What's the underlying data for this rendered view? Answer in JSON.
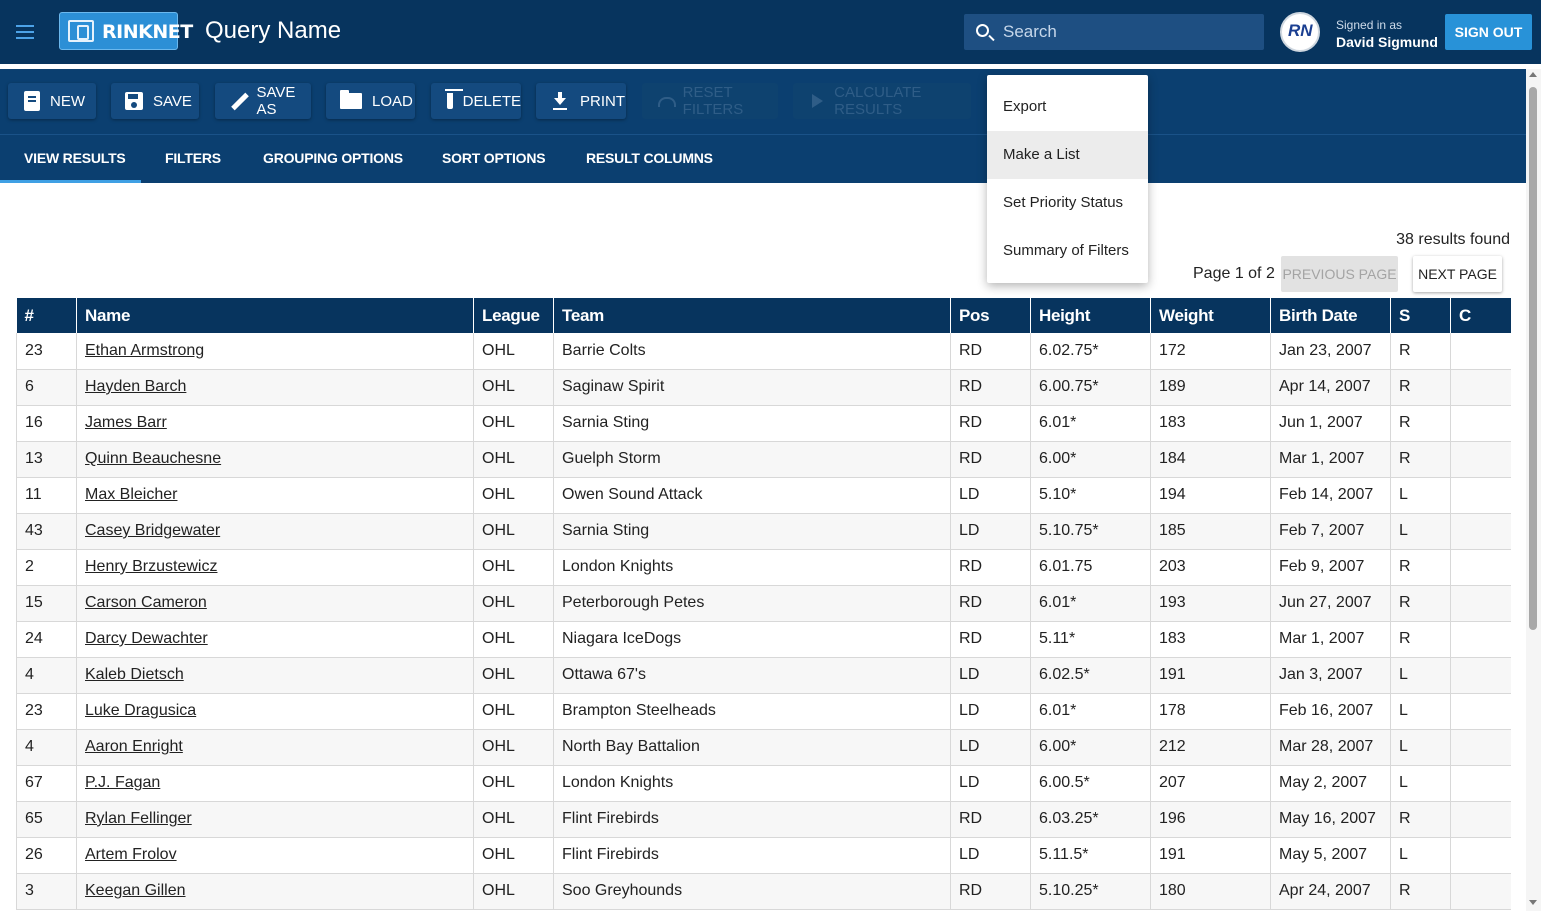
{
  "header": {
    "logo_text": "RINKNET",
    "title": "Query Name",
    "search_placeholder": "Search",
    "signed_in_label": "Signed in as",
    "user_name": "David Sigmund",
    "avatar_initials": "RN",
    "signout_label": "SIGN OUT"
  },
  "toolbar": {
    "new": "NEW",
    "save": "SAVE",
    "save_as": "SAVE AS",
    "load": "LOAD",
    "delete": "DELETE",
    "print": "PRINT",
    "reset_filters": "RESET FILTERS",
    "calculate_results": "CALCULATE RESULTS"
  },
  "tabs": [
    "VIEW RESULTS",
    "FILTERS",
    "GROUPING OPTIONS",
    "SORT OPTIONS",
    "RESULT COLUMNS"
  ],
  "menu": [
    "Export",
    "Make a List",
    "Set Priority Status",
    "Summary of Filters"
  ],
  "results": {
    "count_text": "38 results found",
    "page_text": "Page 1 of 2",
    "prev_label": "PREVIOUS PAGE",
    "next_label": "NEXT PAGE"
  },
  "table": {
    "columns": [
      "#",
      "Name",
      "League",
      "Team",
      "Pos",
      "Height",
      "Weight",
      "Birth Date",
      "S",
      "C"
    ],
    "rows": [
      [
        "23",
        "Ethan Armstrong",
        "OHL",
        "Barrie Colts",
        "RD",
        "6.02.75*",
        "172",
        "Jan 23, 2007",
        "R",
        ""
      ],
      [
        "6",
        "Hayden Barch",
        "OHL",
        "Saginaw Spirit",
        "RD",
        "6.00.75*",
        "189",
        "Apr 14, 2007",
        "R",
        ""
      ],
      [
        "16",
        "James Barr",
        "OHL",
        "Sarnia Sting",
        "RD",
        "6.01*",
        "183",
        "Jun 1, 2007",
        "R",
        ""
      ],
      [
        "13",
        "Quinn Beauchesne",
        "OHL",
        "Guelph Storm",
        "RD",
        "6.00*",
        "184",
        "Mar 1, 2007",
        "R",
        ""
      ],
      [
        "11",
        "Max Bleicher",
        "OHL",
        "Owen Sound Attack",
        "LD",
        "5.10*",
        "194",
        "Feb 14, 2007",
        "L",
        ""
      ],
      [
        "43",
        "Casey Bridgewater",
        "OHL",
        "Sarnia Sting",
        "LD",
        "5.10.75*",
        "185",
        "Feb 7, 2007",
        "L",
        ""
      ],
      [
        "2",
        "Henry Brzustewicz",
        "OHL",
        "London Knights",
        "RD",
        "6.01.75",
        "203",
        "Feb 9, 2007",
        "R",
        ""
      ],
      [
        "15",
        "Carson Cameron",
        "OHL",
        "Peterborough Petes",
        "RD",
        "6.01*",
        "193",
        "Jun 27, 2007",
        "R",
        ""
      ],
      [
        "24",
        "Darcy Dewachter",
        "OHL",
        "Niagara IceDogs",
        "RD",
        "5.11*",
        "183",
        "Mar 1, 2007",
        "R",
        ""
      ],
      [
        "4",
        "Kaleb Dietsch",
        "OHL",
        "Ottawa 67's",
        "LD",
        "6.02.5*",
        "191",
        "Jan 3, 2007",
        "L",
        ""
      ],
      [
        "23",
        "Luke Dragusica",
        "OHL",
        "Brampton Steelheads",
        "LD",
        "6.01*",
        "178",
        "Feb 16, 2007",
        "L",
        ""
      ],
      [
        "4",
        "Aaron Enright",
        "OHL",
        "North Bay Battalion",
        "LD",
        "6.00*",
        "212",
        "Mar 28, 2007",
        "L",
        ""
      ],
      [
        "67",
        "P.J. Fagan",
        "OHL",
        "London Knights",
        "LD",
        "6.00.5*",
        "207",
        "May 2, 2007",
        "L",
        ""
      ],
      [
        "65",
        "Rylan Fellinger",
        "OHL",
        "Flint Firebirds",
        "RD",
        "6.03.25*",
        "196",
        "May 16, 2007",
        "R",
        ""
      ],
      [
        "26",
        "Artem Frolov",
        "OHL",
        "Flint Firebirds",
        "LD",
        "5.11.5*",
        "191",
        "May 5, 2007",
        "L",
        ""
      ],
      [
        "3",
        "Keegan Gillen",
        "OHL",
        "Soo Greyhounds",
        "RD",
        "5.10.25*",
        "180",
        "Apr 24, 2007",
        "R",
        ""
      ]
    ]
  }
}
